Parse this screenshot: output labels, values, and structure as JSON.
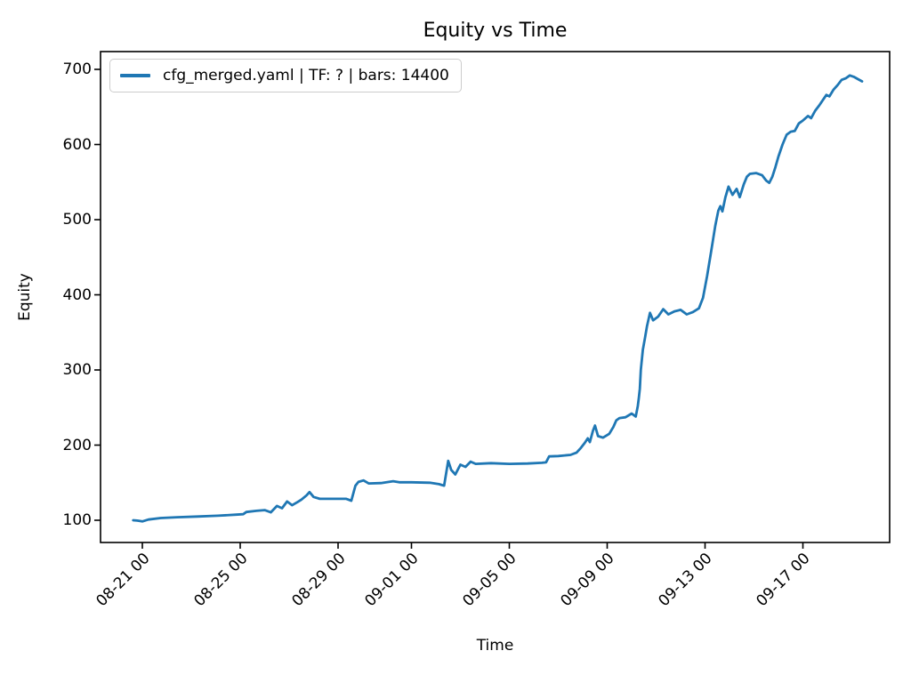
{
  "figure": {
    "title": "Equity vs Time",
    "xlabel": "Time",
    "ylabel": "Equity"
  },
  "legend": {
    "label": "cfg_merged.yaml | TF: ? | bars: 14400",
    "line_color": "#1f77b4"
  },
  "chart_data": {
    "type": "line",
    "title": "Equity vs Time",
    "xlabel": "Time",
    "ylabel": "Equity",
    "grid": false,
    "legend_position": "upper left",
    "x_tick_labels": [
      "08-21 00",
      "08-25 00",
      "08-29 00",
      "09-01 00",
      "09-05 00",
      "09-09 00",
      "09-13 00",
      "09-17 00"
    ],
    "y_tick_labels": [
      100,
      200,
      300,
      400,
      500,
      600,
      700
    ],
    "ylim": [
      70,
      724
    ],
    "xlim": [
      "08-19 07",
      "09-20 09"
    ],
    "series": [
      {
        "name": "cfg_merged.yaml | TF: ? | bars: 14400",
        "color": "#1f77b4",
        "points": [
          [
            "08-20 15",
            100
          ],
          [
            "08-20 19",
            99.5
          ],
          [
            "08-21 00",
            98.5
          ],
          [
            "08-21 06",
            101
          ],
          [
            "08-21 18",
            103
          ],
          [
            "08-22 10",
            104
          ],
          [
            "08-23 06",
            105
          ],
          [
            "08-24 02",
            106
          ],
          [
            "08-24 20",
            107.5
          ],
          [
            "08-25 03",
            108
          ],
          [
            "08-25 06",
            111
          ],
          [
            "08-25 16",
            112.5
          ],
          [
            "08-26 00",
            113.5
          ],
          [
            "08-26 06",
            110.5
          ],
          [
            "08-26 12",
            119
          ],
          [
            "08-26 17",
            116
          ],
          [
            "08-26 22",
            125
          ],
          [
            "08-27 03",
            120
          ],
          [
            "08-27 08",
            124
          ],
          [
            "08-27 12",
            127.5
          ],
          [
            "08-27 17",
            133
          ],
          [
            "08-27 20",
            137.5
          ],
          [
            "08-28 00",
            131
          ],
          [
            "08-28 06",
            128.5
          ],
          [
            "08-29 08",
            128.5
          ],
          [
            "08-29 13",
            126
          ],
          [
            "08-29 17",
            146
          ],
          [
            "08-29 20",
            151
          ],
          [
            "08-30 01",
            153
          ],
          [
            "08-30 06",
            149
          ],
          [
            "08-30 18",
            149.5
          ],
          [
            "08-31 06",
            152
          ],
          [
            "08-31 12",
            150.5
          ],
          [
            "09-01 00",
            150.5
          ],
          [
            "09-01 18",
            150
          ],
          [
            "09-02 03",
            148
          ],
          [
            "09-02 08",
            146
          ],
          [
            "09-02 12",
            179
          ],
          [
            "09-02 15",
            167
          ],
          [
            "09-02 19",
            161
          ],
          [
            "09-03 00",
            174
          ],
          [
            "09-03 05",
            171
          ],
          [
            "09-03 10",
            178
          ],
          [
            "09-03 15",
            175
          ],
          [
            "09-04 06",
            176
          ],
          [
            "09-05 00",
            175
          ],
          [
            "09-05 18",
            175.5
          ],
          [
            "09-06 08",
            176.5
          ],
          [
            "09-06 12",
            177
          ],
          [
            "09-06 15",
            185
          ],
          [
            "09-07 00",
            185.5
          ],
          [
            "09-07 12",
            187
          ],
          [
            "09-07 18",
            190
          ],
          [
            "09-07 22",
            196
          ],
          [
            "09-08 02",
            203
          ],
          [
            "09-08 05",
            209
          ],
          [
            "09-08 07",
            204
          ],
          [
            "09-08 10",
            219
          ],
          [
            "09-08 12",
            226
          ],
          [
            "09-08 15",
            212
          ],
          [
            "09-08 20",
            210
          ],
          [
            "09-09 02",
            215
          ],
          [
            "09-09 06",
            224
          ],
          [
            "09-09 09",
            233
          ],
          [
            "09-09 12",
            236
          ],
          [
            "09-09 18",
            237
          ],
          [
            "09-10 00",
            242
          ],
          [
            "09-10 04",
            238
          ],
          [
            "09-10 06",
            252
          ],
          [
            "09-10 07",
            262
          ],
          [
            "09-10 08",
            275
          ],
          [
            "09-10 09",
            300
          ],
          [
            "09-10 11",
            327
          ],
          [
            "09-10 13",
            342
          ],
          [
            "09-10 15",
            358
          ],
          [
            "09-10 18",
            376
          ],
          [
            "09-10 21",
            366
          ],
          [
            "09-11 02",
            371
          ],
          [
            "09-11 07",
            381
          ],
          [
            "09-11 12",
            374
          ],
          [
            "09-11 18",
            378
          ],
          [
            "09-12 00",
            380
          ],
          [
            "09-12 06",
            374
          ],
          [
            "09-12 12",
            377
          ],
          [
            "09-12 18",
            382
          ],
          [
            "09-12 22",
            396
          ],
          [
            "09-13 02",
            425
          ],
          [
            "09-13 06",
            458
          ],
          [
            "09-13 10",
            492
          ],
          [
            "09-13 13",
            512
          ],
          [
            "09-13 15",
            518
          ],
          [
            "09-13 17",
            511
          ],
          [
            "09-13 20",
            530
          ],
          [
            "09-13 23",
            544
          ],
          [
            "09-14 03",
            533
          ],
          [
            "09-14 07",
            541
          ],
          [
            "09-14 10",
            530
          ],
          [
            "09-14 14",
            547
          ],
          [
            "09-14 17",
            557
          ],
          [
            "09-14 20",
            561
          ],
          [
            "09-15 02",
            562
          ],
          [
            "09-15 08",
            559
          ],
          [
            "09-15 12",
            552
          ],
          [
            "09-15 15",
            549
          ],
          [
            "09-15 18",
            557
          ],
          [
            "09-15 21",
            570
          ],
          [
            "09-16 00",
            584
          ],
          [
            "09-16 04",
            600
          ],
          [
            "09-16 08",
            613
          ],
          [
            "09-16 12",
            617
          ],
          [
            "09-16 16",
            618
          ],
          [
            "09-16 20",
            628
          ],
          [
            "09-17 00",
            632
          ],
          [
            "09-17 05",
            638
          ],
          [
            "09-17 08",
            635
          ],
          [
            "09-17 12",
            645
          ],
          [
            "09-17 16",
            652
          ],
          [
            "09-17 20",
            660
          ],
          [
            "09-17 23",
            666
          ],
          [
            "09-18 02",
            664
          ],
          [
            "09-18 06",
            673
          ],
          [
            "09-18 10",
            679
          ],
          [
            "09-18 14",
            686
          ],
          [
            "09-18 18",
            688
          ],
          [
            "09-18 22",
            692
          ],
          [
            "09-19 02",
            690
          ],
          [
            "09-19 06",
            687
          ],
          [
            "09-19 10",
            684
          ]
        ]
      }
    ]
  }
}
